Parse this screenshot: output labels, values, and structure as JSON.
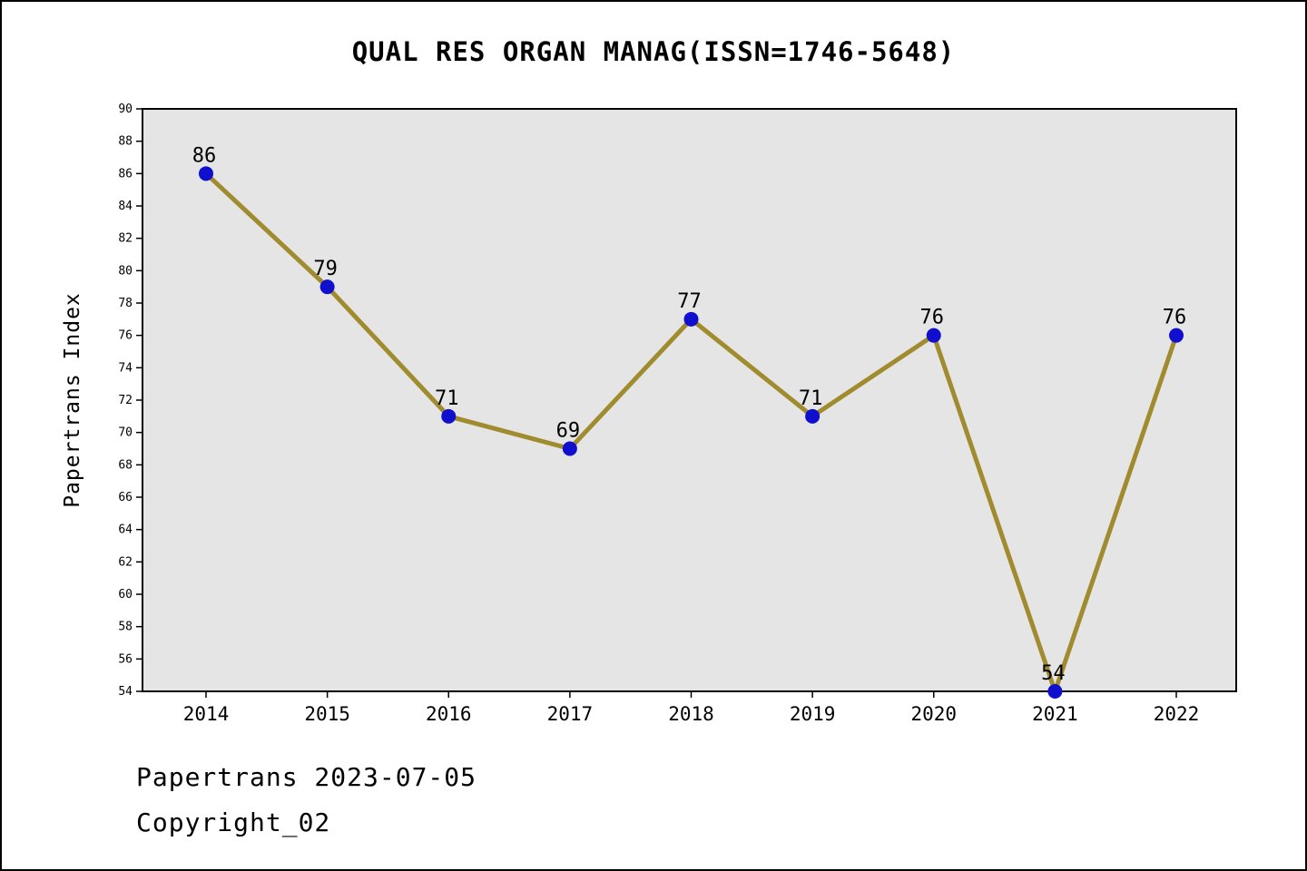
{
  "title": "QUAL RES ORGAN MANAG(ISSN=1746-5648)",
  "footer": {
    "line1": "Papertrans 2023-07-05",
    "line2": "Copyright_02"
  },
  "chart_data": {
    "type": "line",
    "title": "QUAL RES ORGAN MANAG(ISSN=1746-5648)",
    "xlabel": "",
    "ylabel": "Papertrans Index",
    "categories": [
      "2014",
      "2015",
      "2016",
      "2017",
      "2018",
      "2019",
      "2020",
      "2021",
      "2022"
    ],
    "values": [
      86,
      79,
      71,
      69,
      77,
      71,
      76,
      54,
      76
    ],
    "ylim": [
      54,
      90
    ],
    "ytick_step": 2,
    "grid": false,
    "legend": "none",
    "colors": {
      "line": "#a08c2e",
      "marker": "#0f0fcd",
      "plot_background": "#e5e5e5",
      "axis": "#000000",
      "text": "#000000"
    }
  }
}
